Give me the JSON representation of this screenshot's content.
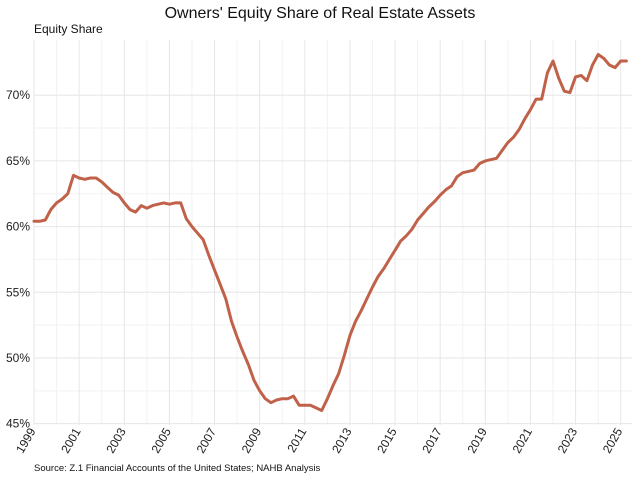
{
  "chart_data": {
    "type": "line",
    "title": "Owners' Equity Share of Real Estate Assets",
    "ylabel": "Equity Share",
    "xlabel": "",
    "source": "Source: Z.1 Financial Accounts of the United States; NAHB Analysis",
    "line_color": "#c0614a",
    "grid": true,
    "legend": "none",
    "xlim": [
      1999.0,
      2025.5
    ],
    "ylim": [
      44.9,
      74.2
    ],
    "x_ticks": [
      1999,
      2001,
      2003,
      2005,
      2007,
      2009,
      2011,
      2013,
      2015,
      2017,
      2019,
      2021,
      2023,
      2025
    ],
    "x_tick_labels": [
      "1999",
      "2001",
      "2003",
      "2005",
      "2007",
      "2009",
      "2011",
      "2013",
      "2015",
      "2017",
      "2019",
      "2021",
      "2023",
      "2025"
    ],
    "y_ticks": [
      45,
      50,
      55,
      60,
      65,
      70
    ],
    "y_tick_labels": [
      "45%",
      "50%",
      "55%",
      "60%",
      "65%",
      "70%"
    ],
    "x": [
      1999.0,
      1999.25,
      1999.5,
      1999.75,
      2000.0,
      2000.25,
      2000.5,
      2000.75,
      2001.0,
      2001.25,
      2001.5,
      2001.75,
      2002.0,
      2002.25,
      2002.5,
      2002.75,
      2003.0,
      2003.25,
      2003.5,
      2003.75,
      2004.0,
      2004.25,
      2004.5,
      2004.75,
      2005.0,
      2005.25,
      2005.5,
      2005.75,
      2006.0,
      2006.25,
      2006.5,
      2006.75,
      2007.0,
      2007.25,
      2007.5,
      2007.75,
      2008.0,
      2008.25,
      2008.5,
      2008.75,
      2009.0,
      2009.25,
      2009.5,
      2009.75,
      2010.0,
      2010.25,
      2010.5,
      2010.75,
      2011.0,
      2011.25,
      2011.5,
      2011.75,
      2012.0,
      2012.25,
      2012.5,
      2012.75,
      2013.0,
      2013.25,
      2013.5,
      2013.75,
      2014.0,
      2014.25,
      2014.5,
      2014.75,
      2015.0,
      2015.25,
      2015.5,
      2015.75,
      2016.0,
      2016.25,
      2016.5,
      2016.75,
      2017.0,
      2017.25,
      2017.5,
      2017.75,
      2018.0,
      2018.25,
      2018.5,
      2018.75,
      2019.0,
      2019.25,
      2019.5,
      2019.75,
      2020.0,
      2020.25,
      2020.5,
      2020.75,
      2021.0,
      2021.25,
      2021.5,
      2021.75,
      2022.0,
      2022.25,
      2022.5,
      2022.75,
      2023.0,
      2023.25,
      2023.5,
      2023.75,
      2024.0,
      2024.25,
      2024.5,
      2024.75,
      2025.0,
      2025.25
    ],
    "series": [
      {
        "values": [
          60.4,
          60.4,
          60.5,
          61.3,
          61.8,
          62.1,
          62.5,
          63.9,
          63.7,
          63.6,
          63.7,
          63.7,
          63.4,
          63.0,
          62.6,
          62.4,
          61.8,
          61.3,
          61.1,
          61.6,
          61.4,
          61.6,
          61.7,
          61.8,
          61.7,
          61.8,
          61.8,
          60.6,
          60.0,
          59.5,
          59.0,
          57.8,
          56.7,
          55.6,
          54.5,
          52.8,
          51.6,
          50.5,
          49.5,
          48.3,
          47.5,
          46.9,
          46.6,
          46.8,
          46.9,
          46.9,
          47.1,
          46.4,
          46.4,
          46.4,
          46.2,
          46.0,
          46.9,
          47.9,
          48.8,
          50.2,
          51.7,
          52.8,
          53.6,
          54.5,
          55.4,
          56.2,
          56.8,
          57.5,
          58.2,
          58.9,
          59.3,
          59.8,
          60.5,
          61.0,
          61.5,
          61.9,
          62.4,
          62.8,
          63.1,
          63.8,
          64.1,
          64.2,
          64.3,
          64.8,
          65.0,
          65.1,
          65.2,
          65.8,
          66.4,
          66.8,
          67.4,
          68.2,
          68.9,
          69.7,
          69.7,
          71.7,
          72.6,
          71.3,
          70.3,
          70.2,
          71.4,
          71.5,
          71.1,
          72.3,
          73.1,
          72.8,
          72.3,
          72.1,
          72.6,
          72.6
        ]
      }
    ]
  }
}
